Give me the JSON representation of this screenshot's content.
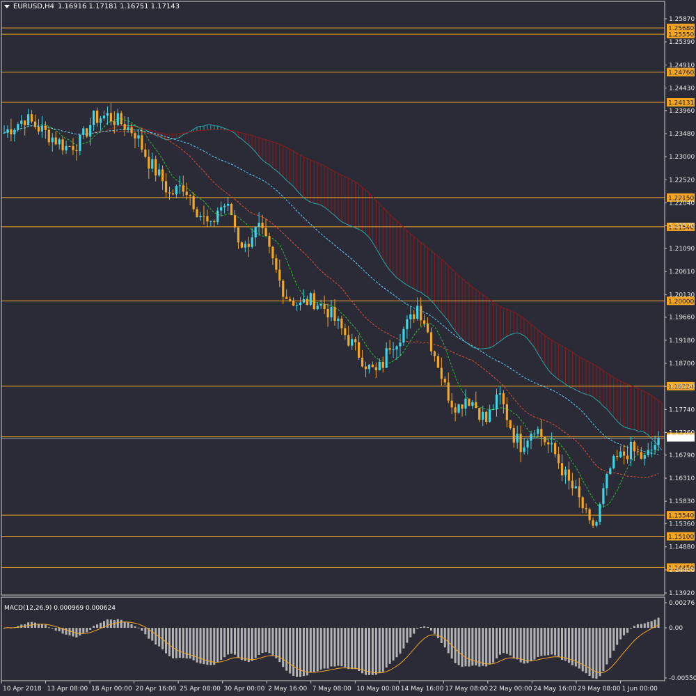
{
  "header": {
    "symbol_tf": "EURUSD,H4",
    "ohlc": "1.16916 1.17181 1.16751 1.17143"
  },
  "macd": {
    "label": "MACD(12,26,9) 0.000969 0.000624",
    "ticks": [
      "0.00276",
      "0.00",
      "-0.005505"
    ]
  },
  "colors": {
    "background": "#2b2b38",
    "bull": "#3ed6e6",
    "bear": "#f5a623",
    "level": "#f5a623",
    "kumo_bear": "#8b1a1a",
    "kumo_bull": "#2aa6a6",
    "kijun": "#e0522a",
    "tenkan": "#29c229",
    "chikou": "#5fd4ff",
    "histogram": "#b4b4b4",
    "signal": "#f5a623"
  },
  "chart_data": {
    "type": "candlestick",
    "symbol": "EURUSD",
    "timeframe": "H4",
    "ylim": [
      1.1392,
      1.2587
    ],
    "price_ticks": [
      "1.25870",
      "1.25390",
      "1.24910",
      "1.24430",
      "1.23960",
      "1.23480",
      "1.23000",
      "1.22520",
      "1.22040",
      "1.21570",
      "1.21090",
      "1.20610",
      "1.20130",
      "1.19660",
      "1.19180",
      "1.18700",
      "1.18220",
      "1.17740",
      "1.17260",
      "1.16790",
      "1.16310",
      "1.15830",
      "1.15360",
      "1.14880",
      "1.14400",
      "1.13920"
    ],
    "level_lines": [
      "1.25680",
      "1.25550",
      "1.24760",
      "1.24131",
      "1.22150",
      "1.21540",
      "1.20000",
      "1.18224",
      "1.17170",
      "1.15540",
      "1.15100",
      "1.14450"
    ],
    "current_price": "1.17143",
    "x_labels": [
      "10 Apr 2018",
      "13 Apr 08:00",
      "18 Apr 00:00",
      "20 Apr 16:00",
      "25 Apr 08:00",
      "30 Apr 00:00",
      "2 May 16:00",
      "7 May 08:00",
      "10 May 00:00",
      "14 May 16:00",
      "17 May 08:00",
      "22 May 00:00",
      "24 May 16:00",
      "29 May 08:00",
      "1 Jun 00:00"
    ],
    "path": [
      [
        0,
        1.235
      ],
      [
        6,
        1.238
      ],
      [
        10,
        1.236
      ],
      [
        14,
        1.234
      ],
      [
        18,
        1.232
      ],
      [
        22,
        1.233
      ],
      [
        26,
        1.238
      ],
      [
        30,
        1.2385
      ],
      [
        34,
        1.237
      ],
      [
        38,
        1.235
      ],
      [
        40,
        1.232
      ],
      [
        42,
        1.229
      ],
      [
        44,
        1.227
      ],
      [
        46,
        1.225
      ],
      [
        48,
        1.222
      ],
      [
        50,
        1.223
      ],
      [
        52,
        1.224
      ],
      [
        54,
        1.222
      ],
      [
        56,
        1.219
      ],
      [
        58,
        1.217
      ],
      [
        60,
        1.215
      ],
      [
        62,
        1.219
      ],
      [
        64,
        1.22
      ],
      [
        66,
        1.218
      ],
      [
        68,
        1.213
      ],
      [
        70,
        1.211
      ],
      [
        72,
        1.214
      ],
      [
        74,
        1.215
      ],
      [
        76,
        1.212
      ],
      [
        78,
        1.208
      ],
      [
        80,
        1.204
      ],
      [
        82,
        1.201
      ],
      [
        84,
        1.2
      ],
      [
        86,
        1.199
      ],
      [
        88,
        1.2
      ],
      [
        90,
        1.2
      ],
      [
        92,
        1.199
      ],
      [
        94,
        1.198
      ],
      [
        96,
        1.196
      ],
      [
        98,
        1.194
      ],
      [
        100,
        1.192
      ],
      [
        102,
        1.19
      ],
      [
        104,
        1.188
      ],
      [
        106,
        1.186
      ],
      [
        108,
        1.185
      ],
      [
        110,
        1.187
      ],
      [
        112,
        1.191
      ],
      [
        114,
        1.192
      ],
      [
        116,
        1.194
      ],
      [
        118,
        1.196
      ],
      [
        120,
        1.199
      ],
      [
        122,
        1.196
      ],
      [
        124,
        1.191
      ],
      [
        126,
        1.187
      ],
      [
        128,
        1.182
      ],
      [
        130,
        1.179
      ],
      [
        132,
        1.178
      ],
      [
        134,
        1.18
      ],
      [
        136,
        1.179
      ],
      [
        138,
        1.177
      ],
      [
        140,
        1.175
      ],
      [
        142,
        1.178
      ],
      [
        144,
        1.18
      ],
      [
        146,
        1.176
      ],
      [
        148,
        1.172
      ],
      [
        150,
        1.17
      ],
      [
        152,
        1.172
      ],
      [
        154,
        1.174
      ],
      [
        156,
        1.172
      ],
      [
        158,
        1.17
      ],
      [
        160,
        1.168
      ],
      [
        162,
        1.165
      ],
      [
        164,
        1.162
      ],
      [
        166,
        1.16
      ],
      [
        168,
        1.157
      ],
      [
        170,
        1.153
      ],
      [
        172,
        1.154
      ],
      [
        174,
        1.16
      ],
      [
        176,
        1.165
      ],
      [
        178,
        1.167
      ],
      [
        180,
        1.168
      ],
      [
        182,
        1.169
      ],
      [
        184,
        1.168
      ],
      [
        186,
        1.167
      ],
      [
        188,
        1.169
      ],
      [
        190,
        1.1714
      ]
    ]
  }
}
